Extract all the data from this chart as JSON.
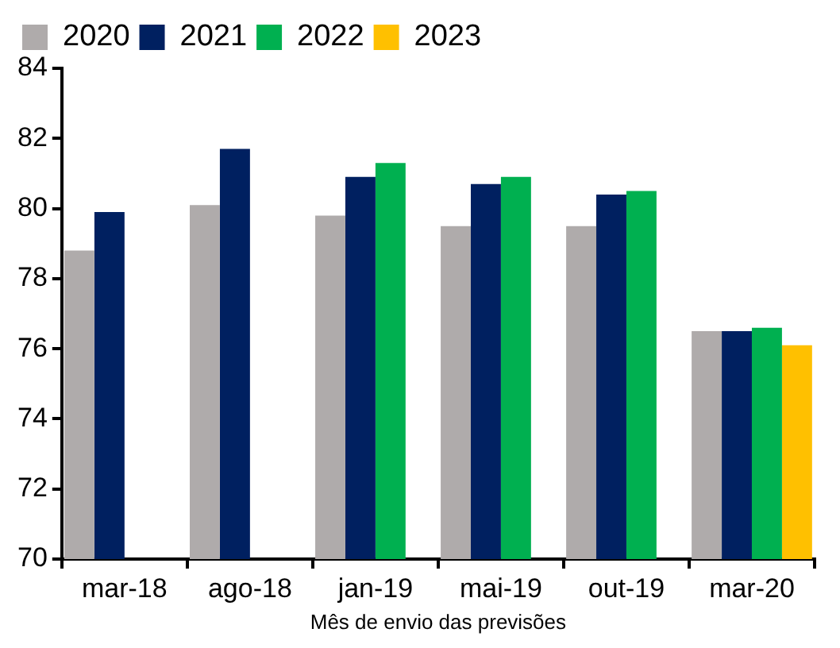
{
  "chart_data": {
    "type": "bar",
    "xlabel": "Mês de envio das previsões",
    "categories": [
      "mar-18",
      "ago-18",
      "jan-19",
      "mai-19",
      "out-19",
      "mar-20"
    ],
    "series": [
      {
        "name": "2020",
        "color": "#afabab",
        "values": [
          78.8,
          80.1,
          79.8,
          79.5,
          79.5,
          76.5
        ]
      },
      {
        "name": "2021",
        "color": "#002060",
        "values": [
          79.9,
          81.7,
          80.9,
          80.7,
          80.4,
          76.5
        ]
      },
      {
        "name": "2022",
        "color": "#00b050",
        "values": [
          null,
          null,
          81.3,
          80.9,
          80.5,
          76.6
        ]
      },
      {
        "name": "2023",
        "color": "#ffc000",
        "values": [
          null,
          null,
          null,
          null,
          null,
          76.1
        ]
      }
    ],
    "ylim": [
      70,
      84
    ],
    "yticks": [
      70,
      72,
      74,
      76,
      78,
      80,
      82,
      84
    ],
    "grid": false,
    "legend": "top left"
  }
}
